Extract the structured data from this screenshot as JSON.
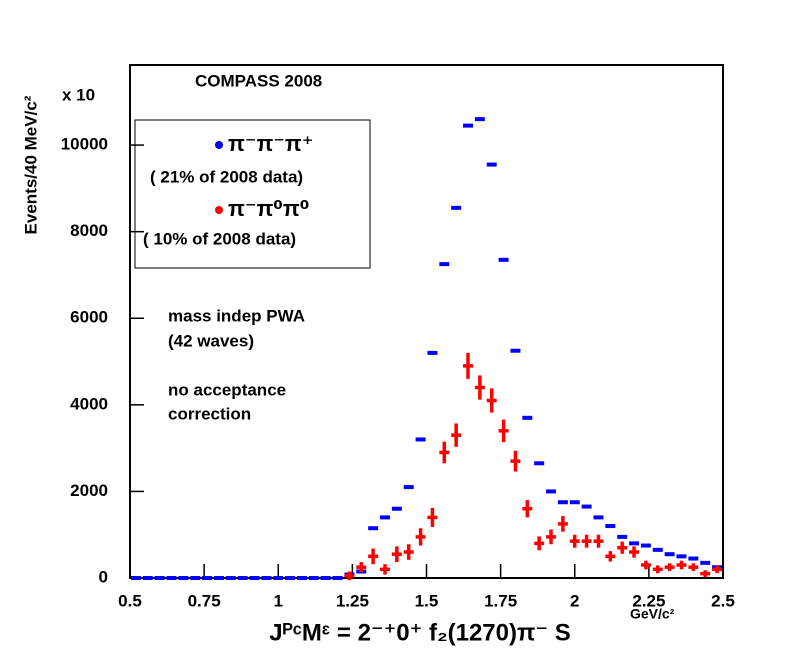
{
  "chart_data": {
    "type": "errorbar",
    "title": "COMPASS 2008",
    "x_label": "JᴾᶜMᵋ = 2⁻⁺0⁺ f₂(1270)π⁻ S",
    "x_unit": "GeV/c²",
    "y_label": "Events/40 MeV/c²",
    "y_multiplier": "x 10",
    "annotations": [
      "mass indep PWA",
      "(42 waves)",
      "no acceptance",
      "correction"
    ],
    "x": [
      0.52,
      0.56,
      0.6,
      0.64,
      0.68,
      0.72,
      0.76,
      0.8,
      0.84,
      0.88,
      0.92,
      0.96,
      1.0,
      1.04,
      1.08,
      1.12,
      1.16,
      1.2,
      1.24,
      1.28,
      1.32,
      1.36,
      1.4,
      1.44,
      1.48,
      1.52,
      1.56,
      1.6,
      1.64,
      1.68,
      1.72,
      1.76,
      1.8,
      1.84,
      1.88,
      1.92,
      1.96,
      2.0,
      2.04,
      2.08,
      2.12,
      2.16,
      2.2,
      2.24,
      2.28,
      2.32,
      2.36,
      2.4,
      2.44,
      2.48
    ],
    "series": [
      {
        "name": "π⁻π⁻π⁺",
        "note": "( 21% of 2008 data)",
        "color": "#0000ff",
        "values": [
          0,
          0,
          0,
          0,
          0,
          0,
          0,
          0,
          0,
          0,
          0,
          0,
          0,
          0,
          0,
          0,
          0,
          0,
          80,
          150,
          1150,
          1400,
          1600,
          2100,
          3200,
          5200,
          7250,
          8550,
          10450,
          10600,
          9550,
          7350,
          5250,
          3700,
          2650,
          2000,
          1750,
          1750,
          1650,
          1400,
          1200,
          950,
          800,
          750,
          650,
          550,
          500,
          450,
          350,
          250
        ]
      },
      {
        "name": "π⁻π⁰π⁰",
        "note": "( 10% of 2008 data)",
        "color": "#ff0000",
        "values": [
          null,
          null,
          null,
          null,
          null,
          null,
          null,
          null,
          null,
          null,
          null,
          null,
          null,
          null,
          null,
          null,
          null,
          null,
          50,
          250,
          500,
          200,
          550,
          600,
          950,
          1400,
          2900,
          3300,
          4900,
          4400,
          4100,
          3400,
          2700,
          1600,
          800,
          950,
          1250,
          850,
          850,
          850,
          500,
          700,
          600,
          300,
          200,
          250,
          300,
          250,
          100,
          200
        ],
        "errors": [
          null,
          null,
          null,
          null,
          null,
          null,
          null,
          null,
          null,
          null,
          null,
          null,
          null,
          null,
          null,
          null,
          null,
          null,
          100,
          120,
          180,
          120,
          180,
          180,
          200,
          220,
          250,
          270,
          300,
          280,
          280,
          260,
          240,
          200,
          160,
          170,
          180,
          150,
          150,
          150,
          120,
          140,
          130,
          100,
          90,
          90,
          100,
          90,
          80,
          90
        ]
      }
    ],
    "xlim": [
      0.5,
      2.5
    ],
    "xticks": [
      0.5,
      0.75,
      1,
      1.25,
      1.5,
      1.75,
      2,
      2.25,
      2.5
    ],
    "ylim": [
      0,
      11850
    ],
    "yticks": [
      0,
      2000,
      4000,
      6000,
      8000,
      10000
    ]
  }
}
